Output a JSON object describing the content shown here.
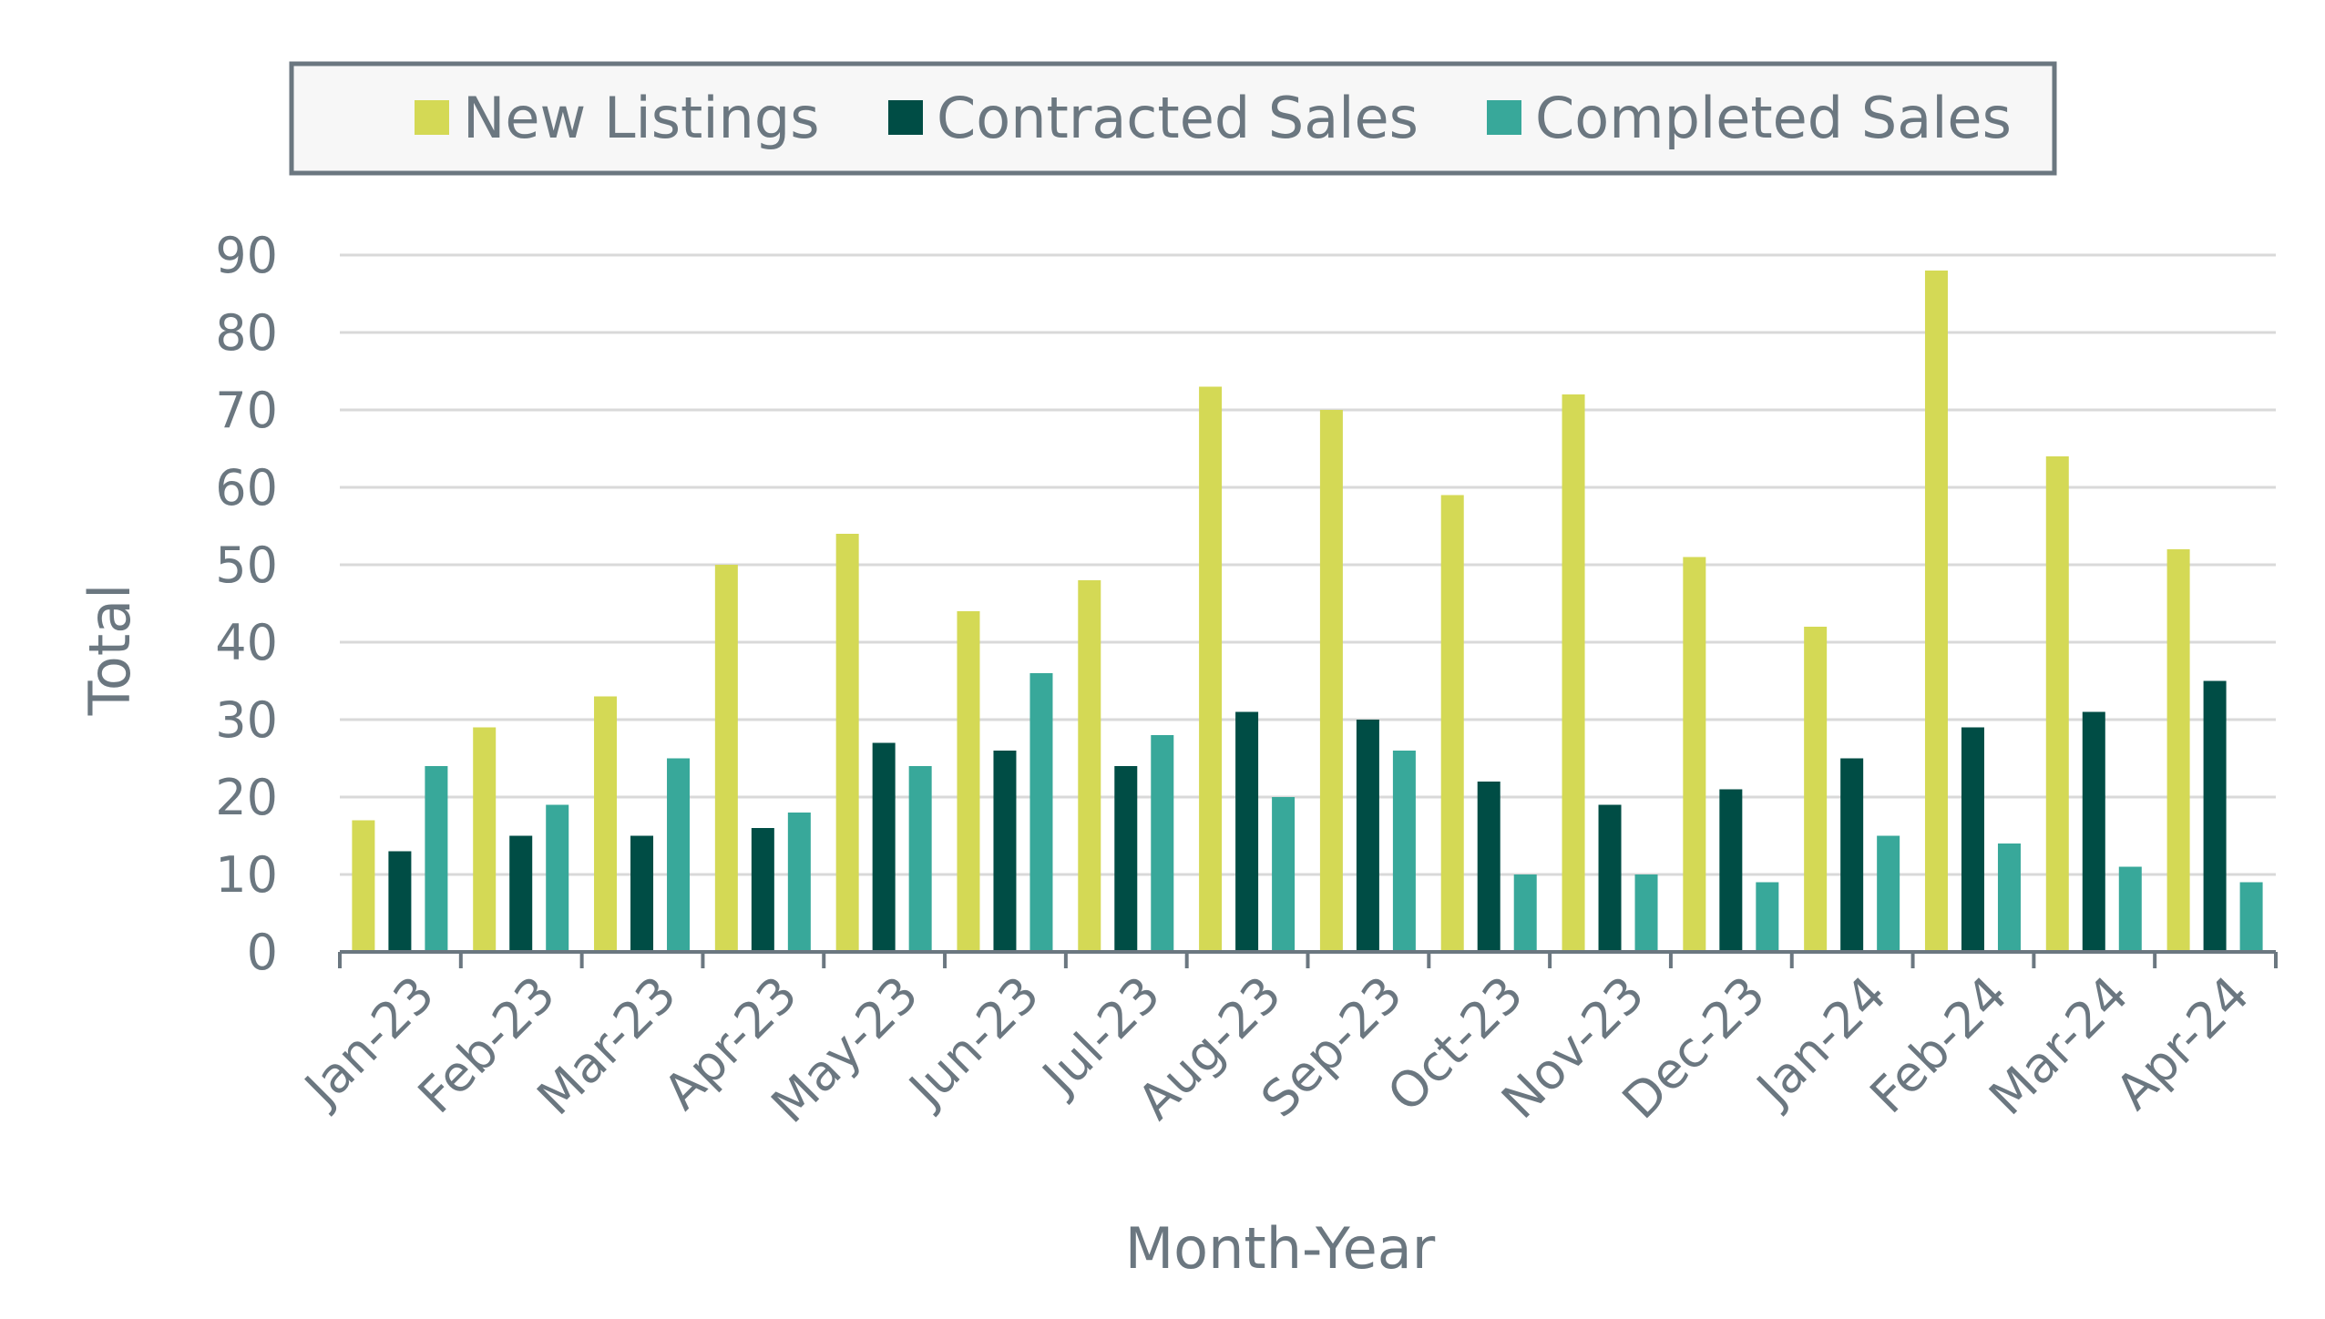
{
  "chart_data": {
    "type": "bar",
    "title": "",
    "xlabel": "Month-Year",
    "ylabel": "Total",
    "ylim": [
      0,
      90
    ],
    "yticks": [
      0,
      10,
      20,
      30,
      40,
      50,
      60,
      70,
      80,
      90
    ],
    "grid": true,
    "legend_position": "top",
    "categories": [
      "Jan-23",
      "Feb-23",
      "Mar-23",
      "Apr-23",
      "May-23",
      "Jun-23",
      "Jul-23",
      "Aug-23",
      "Sep-23",
      "Oct-23",
      "Nov-23",
      "Dec-23",
      "Jan-24",
      "Feb-24",
      "Mar-24",
      "Apr-24"
    ],
    "series": [
      {
        "name": "New Listings",
        "color": "#d4d955",
        "values": [
          17,
          29,
          33,
          50,
          54,
          44,
          48,
          73,
          70,
          59,
          72,
          51,
          42,
          88,
          64,
          52
        ]
      },
      {
        "name": "Contracted Sales",
        "color": "#004d45",
        "values": [
          13,
          15,
          15,
          16,
          27,
          26,
          24,
          31,
          30,
          22,
          19,
          21,
          25,
          29,
          31,
          35
        ]
      },
      {
        "name": "Completed Sales",
        "color": "#38a89a",
        "values": [
          24,
          19,
          25,
          18,
          24,
          36,
          28,
          20,
          26,
          10,
          10,
          9,
          15,
          14,
          11,
          9
        ]
      }
    ]
  }
}
